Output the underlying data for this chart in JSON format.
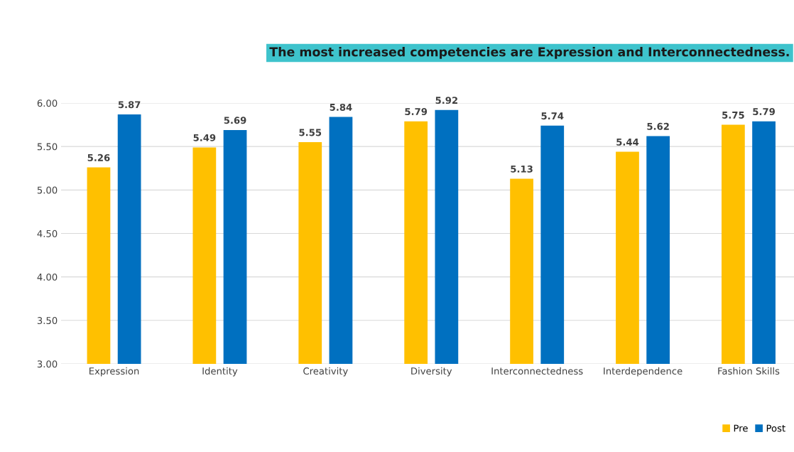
{
  "chart_data": {
    "type": "bar",
    "title": "The most increased competencies are Expression and Interconnectedness.",
    "categories": [
      "Expression",
      "Identity",
      "Creativity",
      "Diversity",
      "Interconnectedness",
      "Interdependence",
      "Fashion Skills"
    ],
    "series": [
      {
        "name": "Pre",
        "color": "#ffc000",
        "values": [
          5.26,
          5.49,
          5.55,
          5.79,
          5.13,
          5.44,
          5.75
        ]
      },
      {
        "name": "Post",
        "color": "#0070c0",
        "values": [
          5.87,
          5.69,
          5.84,
          5.92,
          5.74,
          5.62,
          5.79
        ]
      }
    ],
    "ylim": [
      3,
      6
    ],
    "yticks": [
      {
        "value": 3,
        "label": "3.00"
      },
      {
        "value": 3.5,
        "label": "3.50"
      },
      {
        "value": 4,
        "label": "4.00"
      },
      {
        "value": 4.5,
        "label": "4.50"
      },
      {
        "value": 5,
        "label": "5.00"
      },
      {
        "value": 5.5,
        "label": "5.50"
      },
      {
        "value": 6,
        "label": "6.00"
      }
    ],
    "grid": "y",
    "legend": "bottom right",
    "data_labels": true
  }
}
